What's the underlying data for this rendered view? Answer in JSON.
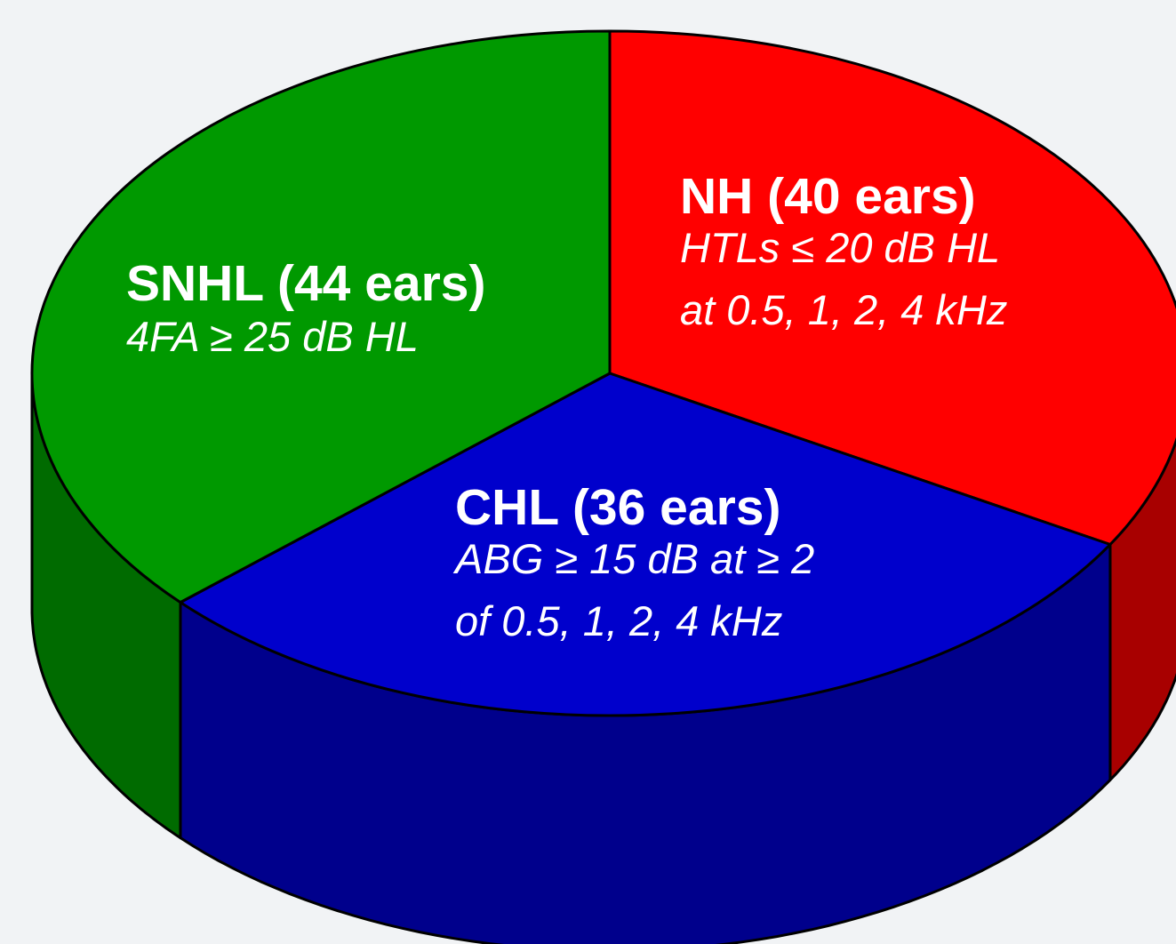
{
  "chart_data": {
    "type": "pie3d",
    "values": [
      40,
      36,
      44
    ],
    "value_labels": [
      "NH (40 ears)",
      "CHL (36 ears)",
      "SNHL (44 ears)"
    ],
    "descriptions": [
      [
        "HTLs ≤ 20 dB HL",
        "at 0.5, 1, 2, 4 kHz"
      ],
      [
        "ABG ≥ 15 dB at ≥ 2",
        "of 0.5, 1, 2, 4 kHz"
      ],
      [
        "4FA ≥ 25 dB HL"
      ]
    ],
    "colors": [
      "#ff0000",
      "#0000cc",
      "#009900"
    ],
    "side_colors": [
      "#a80000",
      "#00008c",
      "#006b00"
    ]
  }
}
